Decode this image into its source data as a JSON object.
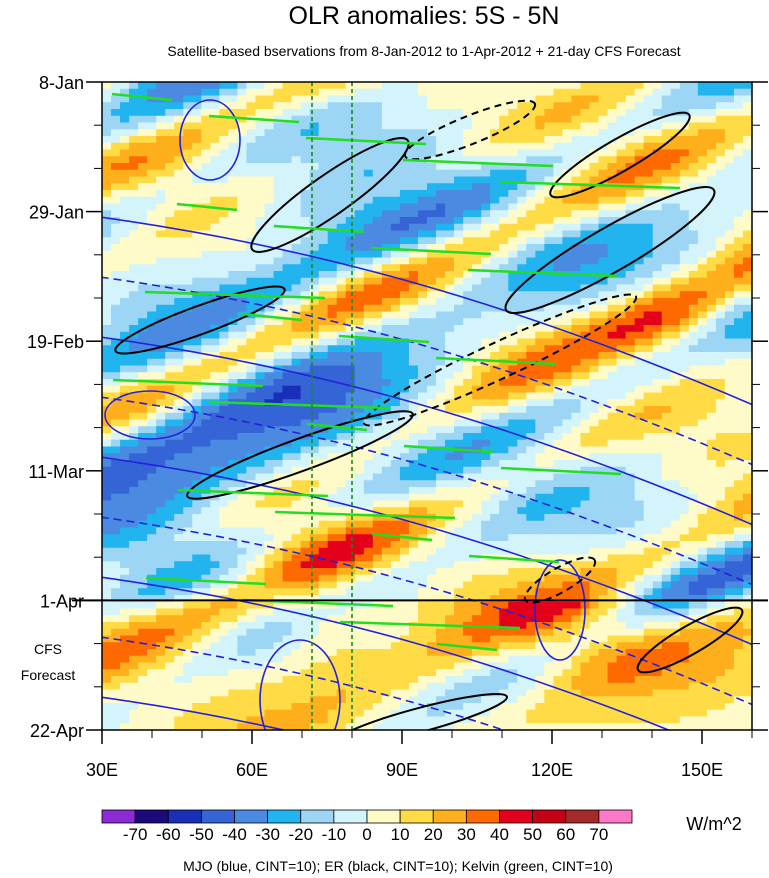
{
  "chart_data": {
    "type": "heatmap",
    "title": "OLR anomalies: 5S - 5N",
    "subtitle": "Satellite-based bservations from 8-Jan-2012 to 1-Apr-2012 + 21-day CFS Forecast",
    "x_ticks": [
      {
        "value": 30,
        "label": "30E"
      },
      {
        "value": 60,
        "label": "60E"
      },
      {
        "value": 90,
        "label": "90E"
      },
      {
        "value": 120,
        "label": "120E"
      },
      {
        "value": 150,
        "label": "150E"
      }
    ],
    "xlim": [
      30,
      160
    ],
    "y_ticks": [
      {
        "date": "2012-01-08",
        "label": "8-Jan"
      },
      {
        "date": "2012-01-29",
        "label": "29-Jan"
      },
      {
        "date": "2012-02-19",
        "label": "19-Feb"
      },
      {
        "date": "2012-03-11",
        "label": "11-Mar"
      },
      {
        "date": "2012-04-01",
        "label": "1-Apr"
      },
      {
        "date": "2012-04-22",
        "label": "22-Apr"
      }
    ],
    "ylim": [
      "2012-01-08",
      "2012-04-22"
    ],
    "forecast_start": "2012-04-01",
    "forecast_label_lines": [
      "CFS",
      "Forecast"
    ],
    "reference_longitudes": [
      72,
      80
    ],
    "colorbar": {
      "labels": [
        "-70",
        "-60",
        "-50",
        "-40",
        "-30",
        "-20",
        "-10",
        "0",
        "10",
        "20",
        "30",
        "40",
        "50",
        "60",
        "70"
      ],
      "colors": [
        "#8c2bd6",
        "#1a0a7a",
        "#1a2fb8",
        "#3564d6",
        "#4a8ae0",
        "#21b4ee",
        "#9cd6f4",
        "#d4f4fb",
        "#fffbc8",
        "#ffdc46",
        "#ffae1c",
        "#ff6a00",
        "#e3001a",
        "#c60014",
        "#a52a2a",
        "#ff78c8"
      ],
      "unit": "W/m^2"
    },
    "footnote": "MJO (blue, CINT=10); ER (black, CINT=10); Kelvin (green, CINT=10)",
    "overlays": [
      {
        "name": "MJO",
        "color": "#2222dd"
      },
      {
        "name": "ER",
        "color": "#000000"
      },
      {
        "name": "Kelvin",
        "color": "#22dd22"
      }
    ]
  }
}
